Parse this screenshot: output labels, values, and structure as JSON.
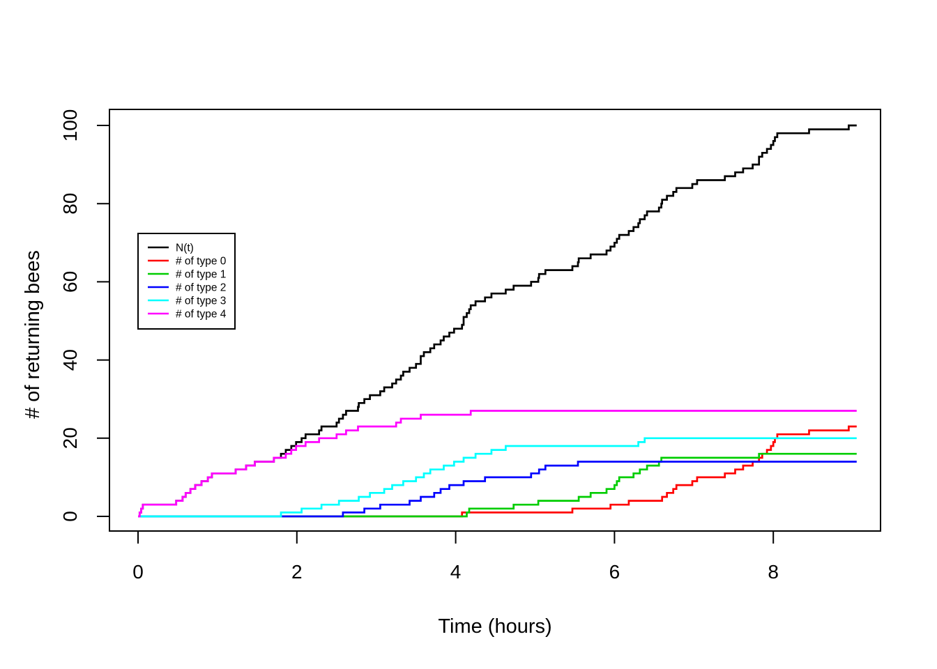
{
  "chart_data": {
    "type": "line",
    "subtype": "step-counting-process",
    "title": "",
    "xlabel": "Time (hours)",
    "ylabel": "# of returning bees",
    "xlim": [
      -0.36,
      9.36
    ],
    "ylim": [
      -4,
      104
    ],
    "x_ticks": [
      0,
      2,
      4,
      6,
      8
    ],
    "y_ticks": [
      0,
      20,
      40,
      60,
      80,
      100
    ],
    "grid": false,
    "legend_position": "upper-left-inset",
    "line_start_time": 0,
    "line_end_time": 9.05,
    "axis_color": "#000000",
    "background_color": "#ffffff",
    "series": [
      {
        "id": "N",
        "name": "N(t)",
        "color": "#000000",
        "final_value": 100,
        "jump_times": [
          0.02,
          0.04,
          0.06,
          0.48,
          0.56,
          0.6,
          0.66,
          0.72,
          0.8,
          0.88,
          0.93,
          1.23,
          1.36,
          1.47,
          1.71,
          1.8,
          1.86,
          1.93,
          1.99,
          2.06,
          2.11,
          2.28,
          2.31,
          2.5,
          2.53,
          2.58,
          2.62,
          2.77,
          2.78,
          2.85,
          2.92,
          3.05,
          3.1,
          3.2,
          3.25,
          3.31,
          3.34,
          3.42,
          3.5,
          3.56,
          3.56,
          3.6,
          3.68,
          3.73,
          3.81,
          3.85,
          3.92,
          3.98,
          4.08,
          4.1,
          4.1,
          4.14,
          4.17,
          4.19,
          4.25,
          4.37,
          4.45,
          4.63,
          4.73,
          4.95,
          5.04,
          5.05,
          5.13,
          5.47,
          5.54,
          5.55,
          5.7,
          5.9,
          5.95,
          6.0,
          6.03,
          6.06,
          6.18,
          6.24,
          6.3,
          6.32,
          6.38,
          6.41,
          6.56,
          6.59,
          6.6,
          6.66,
          6.74,
          6.78,
          6.98,
          7.04,
          7.39,
          7.52,
          7.62,
          7.74,
          7.82,
          7.82,
          7.86,
          7.92,
          7.97,
          8.0,
          8.02,
          8.05,
          8.45,
          8.95
        ]
      },
      {
        "id": "type0",
        "name": "# of type 0",
        "color": "#FF0000",
        "final_value": 23,
        "jump_times": [
          4.08,
          5.47,
          5.95,
          6.18,
          6.6,
          6.66,
          6.74,
          6.78,
          6.98,
          7.04,
          7.39,
          7.52,
          7.62,
          7.74,
          7.82,
          7.86,
          7.92,
          7.97,
          8.0,
          8.02,
          8.05,
          8.45,
          8.95
        ]
      },
      {
        "id": "type1",
        "name": "# of type 1",
        "color": "#00CD00",
        "final_value": 16,
        "jump_times": [
          4.14,
          4.17,
          4.73,
          5.04,
          5.55,
          5.7,
          5.9,
          6.0,
          6.03,
          6.06,
          6.24,
          6.32,
          6.41,
          6.56,
          6.59,
          7.82
        ]
      },
      {
        "id": "type2",
        "name": "# of type 2",
        "color": "#0000FF",
        "final_value": 14,
        "jump_times": [
          2.58,
          2.85,
          3.05,
          3.42,
          3.56,
          3.73,
          3.81,
          3.92,
          4.1,
          4.37,
          4.95,
          5.05,
          5.13,
          5.54
        ]
      },
      {
        "id": "type3",
        "name": "# of type 3",
        "color": "#00FFFF",
        "final_value": 20,
        "jump_times": [
          1.8,
          2.06,
          2.31,
          2.53,
          2.78,
          2.92,
          3.1,
          3.2,
          3.34,
          3.5,
          3.6,
          3.68,
          3.85,
          3.98,
          4.1,
          4.25,
          4.45,
          4.63,
          6.3,
          6.38
        ]
      },
      {
        "id": "type4",
        "name": "# of type 4",
        "color": "#FF00FF",
        "final_value": 27,
        "jump_times": [
          0.02,
          0.04,
          0.06,
          0.48,
          0.56,
          0.6,
          0.66,
          0.72,
          0.8,
          0.88,
          0.93,
          1.23,
          1.36,
          1.47,
          1.71,
          1.86,
          1.93,
          1.99,
          2.11,
          2.28,
          2.5,
          2.62,
          2.77,
          3.25,
          3.31,
          3.56,
          4.19
        ]
      }
    ]
  }
}
